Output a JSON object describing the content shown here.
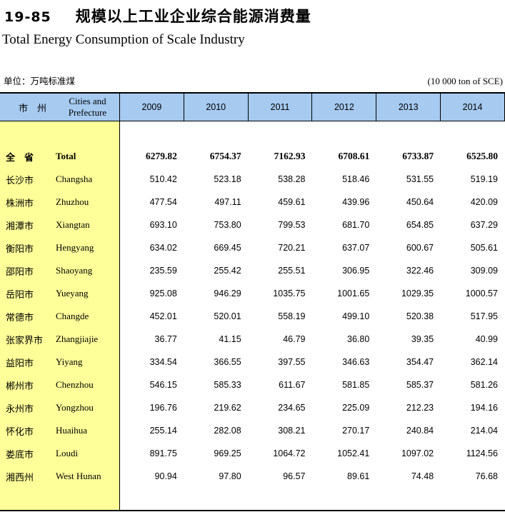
{
  "header": {
    "table_number": "19-85",
    "title_zh": "规模以上工业企业综合能源消费量",
    "title_en": "Total Energy Consumption of Scale Industry",
    "unit_zh": "单位：万吨标准煤",
    "unit_en": "(10 000 ton of SCE)"
  },
  "table": {
    "col_header": {
      "zh": "市　州",
      "en": "Cities and Prefecture"
    },
    "years": [
      "2009",
      "2010",
      "2011",
      "2012",
      "2013",
      "2014"
    ],
    "rows": [
      {
        "zh": "全　省",
        "en": "Total",
        "bold": true,
        "values": [
          "6279.82",
          "6754.37",
          "7162.93",
          "6708.61",
          "6733.87",
          "6525.80"
        ]
      },
      {
        "zh": "长沙市",
        "en": "Changsha",
        "bold": false,
        "values": [
          "510.42",
          "523.18",
          "538.28",
          "518.46",
          "531.55",
          "519.19"
        ]
      },
      {
        "zh": "株洲市",
        "en": "Zhuzhou",
        "bold": false,
        "values": [
          "477.54",
          "497.11",
          "459.61",
          "439.96",
          "450.64",
          "420.09"
        ]
      },
      {
        "zh": "湘潭市",
        "en": "Xiangtan",
        "bold": false,
        "values": [
          "693.10",
          "753.80",
          "799.53",
          "681.70",
          "654.85",
          "637.29"
        ]
      },
      {
        "zh": "衡阳市",
        "en": "Hengyang",
        "bold": false,
        "values": [
          "634.02",
          "669.45",
          "720.21",
          "637.07",
          "600.67",
          "505.61"
        ]
      },
      {
        "zh": "邵阳市",
        "en": "Shaoyang",
        "bold": false,
        "values": [
          "235.59",
          "255.42",
          "255.51",
          "306.95",
          "322.46",
          "309.09"
        ]
      },
      {
        "zh": "岳阳市",
        "en": "Yueyang",
        "bold": false,
        "values": [
          "925.08",
          "946.29",
          "1035.75",
          "1001.65",
          "1029.35",
          "1000.57"
        ]
      },
      {
        "zh": "常德市",
        "en": "Changde",
        "bold": false,
        "values": [
          "452.01",
          "520.01",
          "558.19",
          "499.10",
          "520.38",
          "517.95"
        ]
      },
      {
        "zh": "张家界市",
        "en": "Zhangjiajie",
        "bold": false,
        "values": [
          "36.77",
          "41.15",
          "46.79",
          "36.80",
          "39.35",
          "40.99"
        ]
      },
      {
        "zh": "益阳市",
        "en": "Yiyang",
        "bold": false,
        "values": [
          "334.54",
          "366.55",
          "397.55",
          "346.63",
          "354.47",
          "362.14"
        ]
      },
      {
        "zh": "郴州市",
        "en": "Chenzhou",
        "bold": false,
        "values": [
          "546.15",
          "585.33",
          "611.67",
          "581.85",
          "585.37",
          "581.26"
        ]
      },
      {
        "zh": "永州市",
        "en": "Yongzhou",
        "bold": false,
        "values": [
          "196.76",
          "219.62",
          "234.65",
          "225.09",
          "212.23",
          "194.16"
        ]
      },
      {
        "zh": "怀化市",
        "en": "Huaihua",
        "bold": false,
        "values": [
          "255.14",
          "282.08",
          "308.21",
          "270.17",
          "240.84",
          "214.04"
        ]
      },
      {
        "zh": "娄底市",
        "en": "Loudi",
        "bold": false,
        "values": [
          "891.75",
          "969.25",
          "1064.72",
          "1052.41",
          "1097.02",
          "1124.56"
        ]
      },
      {
        "zh": "湘西州",
        "en": "West Hunan",
        "bold": false,
        "values": [
          "90.94",
          "97.80",
          "96.57",
          "89.61",
          "74.48",
          "76.68"
        ]
      }
    ]
  },
  "colors": {
    "header_blue": "#A6CAF0",
    "region_column_yellow": "#FFFF99",
    "border_black": "#000000"
  }
}
